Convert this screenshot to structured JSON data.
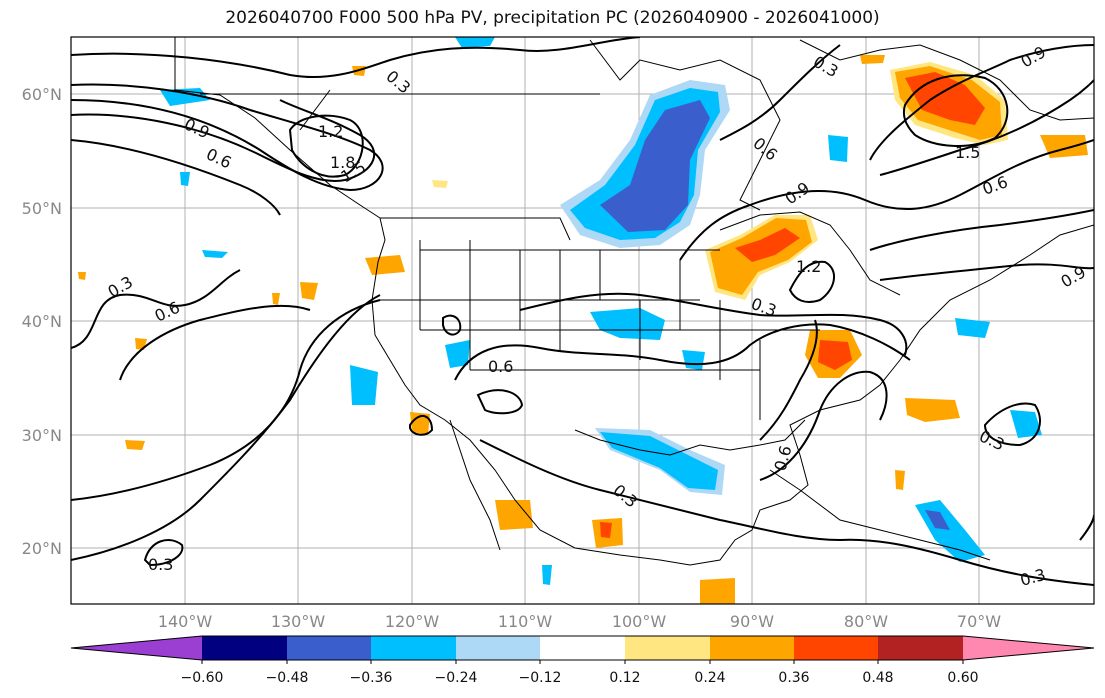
{
  "title": "2026040700 F000 500 hPa PV, precipitation PC (2026040900 - 2026041000)",
  "axes": {
    "lon_ticks": [
      "140°W",
      "130°W",
      "120°W",
      "110°W",
      "100°W",
      "90°W",
      "80°W",
      "70°W"
    ],
    "lat_ticks": [
      "60°N",
      "50°N",
      "40°N",
      "30°N",
      "20°N"
    ]
  },
  "colorbar": {
    "ticks": [
      "−0.60",
      "−0.48",
      "−0.36",
      "−0.24",
      "−0.12",
      "0.12",
      "0.24",
      "0.36",
      "0.48",
      "0.60"
    ],
    "colors": [
      "#9a3fd1",
      "#000080",
      "#3a5fcd",
      "#00bfff",
      "#add8f6",
      "#ffffff",
      "#ffe680",
      "#ffa500",
      "#ff4500",
      "#b22222",
      "#ff88b0"
    ]
  },
  "contour_labels": [
    {
      "text": "0.3"
    },
    {
      "text": "1.2"
    },
    {
      "text": "0.9"
    },
    {
      "text": "0.6"
    },
    {
      "text": "1.8"
    },
    {
      "text": "1.5"
    },
    {
      "text": "0.3"
    },
    {
      "text": "0.6"
    },
    {
      "text": "0.6"
    },
    {
      "text": "0.3"
    },
    {
      "text": "0.3"
    },
    {
      "text": "0.6"
    },
    {
      "text": "0.9"
    },
    {
      "text": "1.2"
    },
    {
      "text": "0.3"
    },
    {
      "text": "0.6"
    },
    {
      "text": "0.3"
    },
    {
      "text": "0.9"
    },
    {
      "text": "1.5"
    },
    {
      "text": "0.6"
    },
    {
      "text": "0.9"
    },
    {
      "text": "0.3"
    },
    {
      "text": "0.3"
    }
  ]
}
